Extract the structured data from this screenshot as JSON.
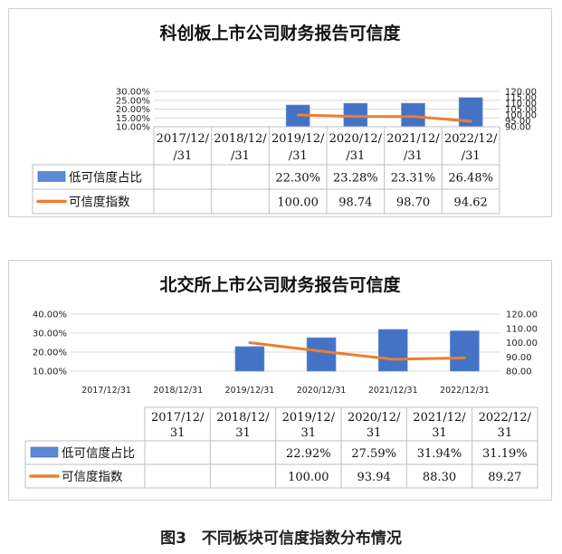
{
  "caption": "图3　不同板块可信度指数分布情况",
  "colors": {
    "bar": "#4472c4",
    "bar_light": "#5b8ad6",
    "line": "#ed7d31",
    "grid": "#d9d9d9",
    "border": "#bfbfbf"
  },
  "chart_data": [
    {
      "type": "bar",
      "title": "科创板上市公司财务报告可信度",
      "categories": [
        "2017/12/31",
        "2018/12/31",
        "2019/12/31",
        "2020/12/31",
        "2021/12/31",
        "2022/12/31"
      ],
      "category_labels": [
        [
          "2017/12/",
          "/31"
        ],
        [
          "2018/12/",
          "/31"
        ],
        [
          "2019/12/",
          "/31"
        ],
        [
          "2020/12/",
          "/31"
        ],
        [
          "2021/12/",
          "/31"
        ],
        [
          "2022/12/",
          "/31"
        ]
      ],
      "y_ticks": [
        "30.00%",
        "25.00%",
        "20.00%",
        "15.00%",
        "10.00%"
      ],
      "y_range": [
        10,
        30
      ],
      "y2_ticks": [
        "120.00",
        "115.00",
        "110.00",
        "105.00",
        "100.00",
        "95.00",
        "90.00"
      ],
      "y2_range": [
        90,
        120
      ],
      "series": [
        {
          "name": "低可信度占比",
          "axis": "left",
          "kind": "bar",
          "values": [
            null,
            null,
            22.3,
            23.28,
            23.31,
            26.48
          ],
          "labels": [
            "",
            "",
            "22.30%",
            "23.28%",
            "23.31%",
            "26.48%"
          ]
        },
        {
          "name": "可信度指数",
          "axis": "right",
          "kind": "line",
          "values": [
            null,
            null,
            100.0,
            98.74,
            98.7,
            94.62
          ],
          "labels": [
            "",
            "",
            "100.00",
            "98.74",
            "98.70",
            "94.62"
          ]
        }
      ]
    },
    {
      "type": "bar",
      "title": "北交所上市公司财务报告可信度",
      "categories": [
        "2017/12/31",
        "2018/12/31",
        "2019/12/31",
        "2020/12/31",
        "2021/12/31",
        "2022/12/31"
      ],
      "category_labels": [
        [
          "2017/12/",
          "31"
        ],
        [
          "2018/12/",
          "31"
        ],
        [
          "2019/12/",
          "31"
        ],
        [
          "2020/12/",
          "31"
        ],
        [
          "2021/12/",
          "31"
        ],
        [
          "2022/12/",
          "31"
        ]
      ],
      "y_ticks": [
        "40.00%",
        "30.00%",
        "20.00%",
        "10.00%"
      ],
      "y_range": [
        10,
        40
      ],
      "y2_ticks": [
        "120.00",
        "110.00",
        "100.00",
        "90.00",
        "80.00"
      ],
      "y2_range": [
        80,
        120
      ],
      "series": [
        {
          "name": "低可信度占比",
          "axis": "left",
          "kind": "bar",
          "values": [
            null,
            null,
            22.92,
            27.59,
            31.94,
            31.19
          ],
          "labels": [
            "",
            "",
            "22.92%",
            "27.59%",
            "31.94%",
            "31.19%"
          ]
        },
        {
          "name": "可信度指数",
          "axis": "right",
          "kind": "line",
          "values": [
            null,
            null,
            100.0,
            93.94,
            88.3,
            89.27
          ],
          "labels": [
            "",
            "",
            "100.00",
            "93.94",
            "88.30",
            "89.27"
          ]
        }
      ]
    }
  ]
}
